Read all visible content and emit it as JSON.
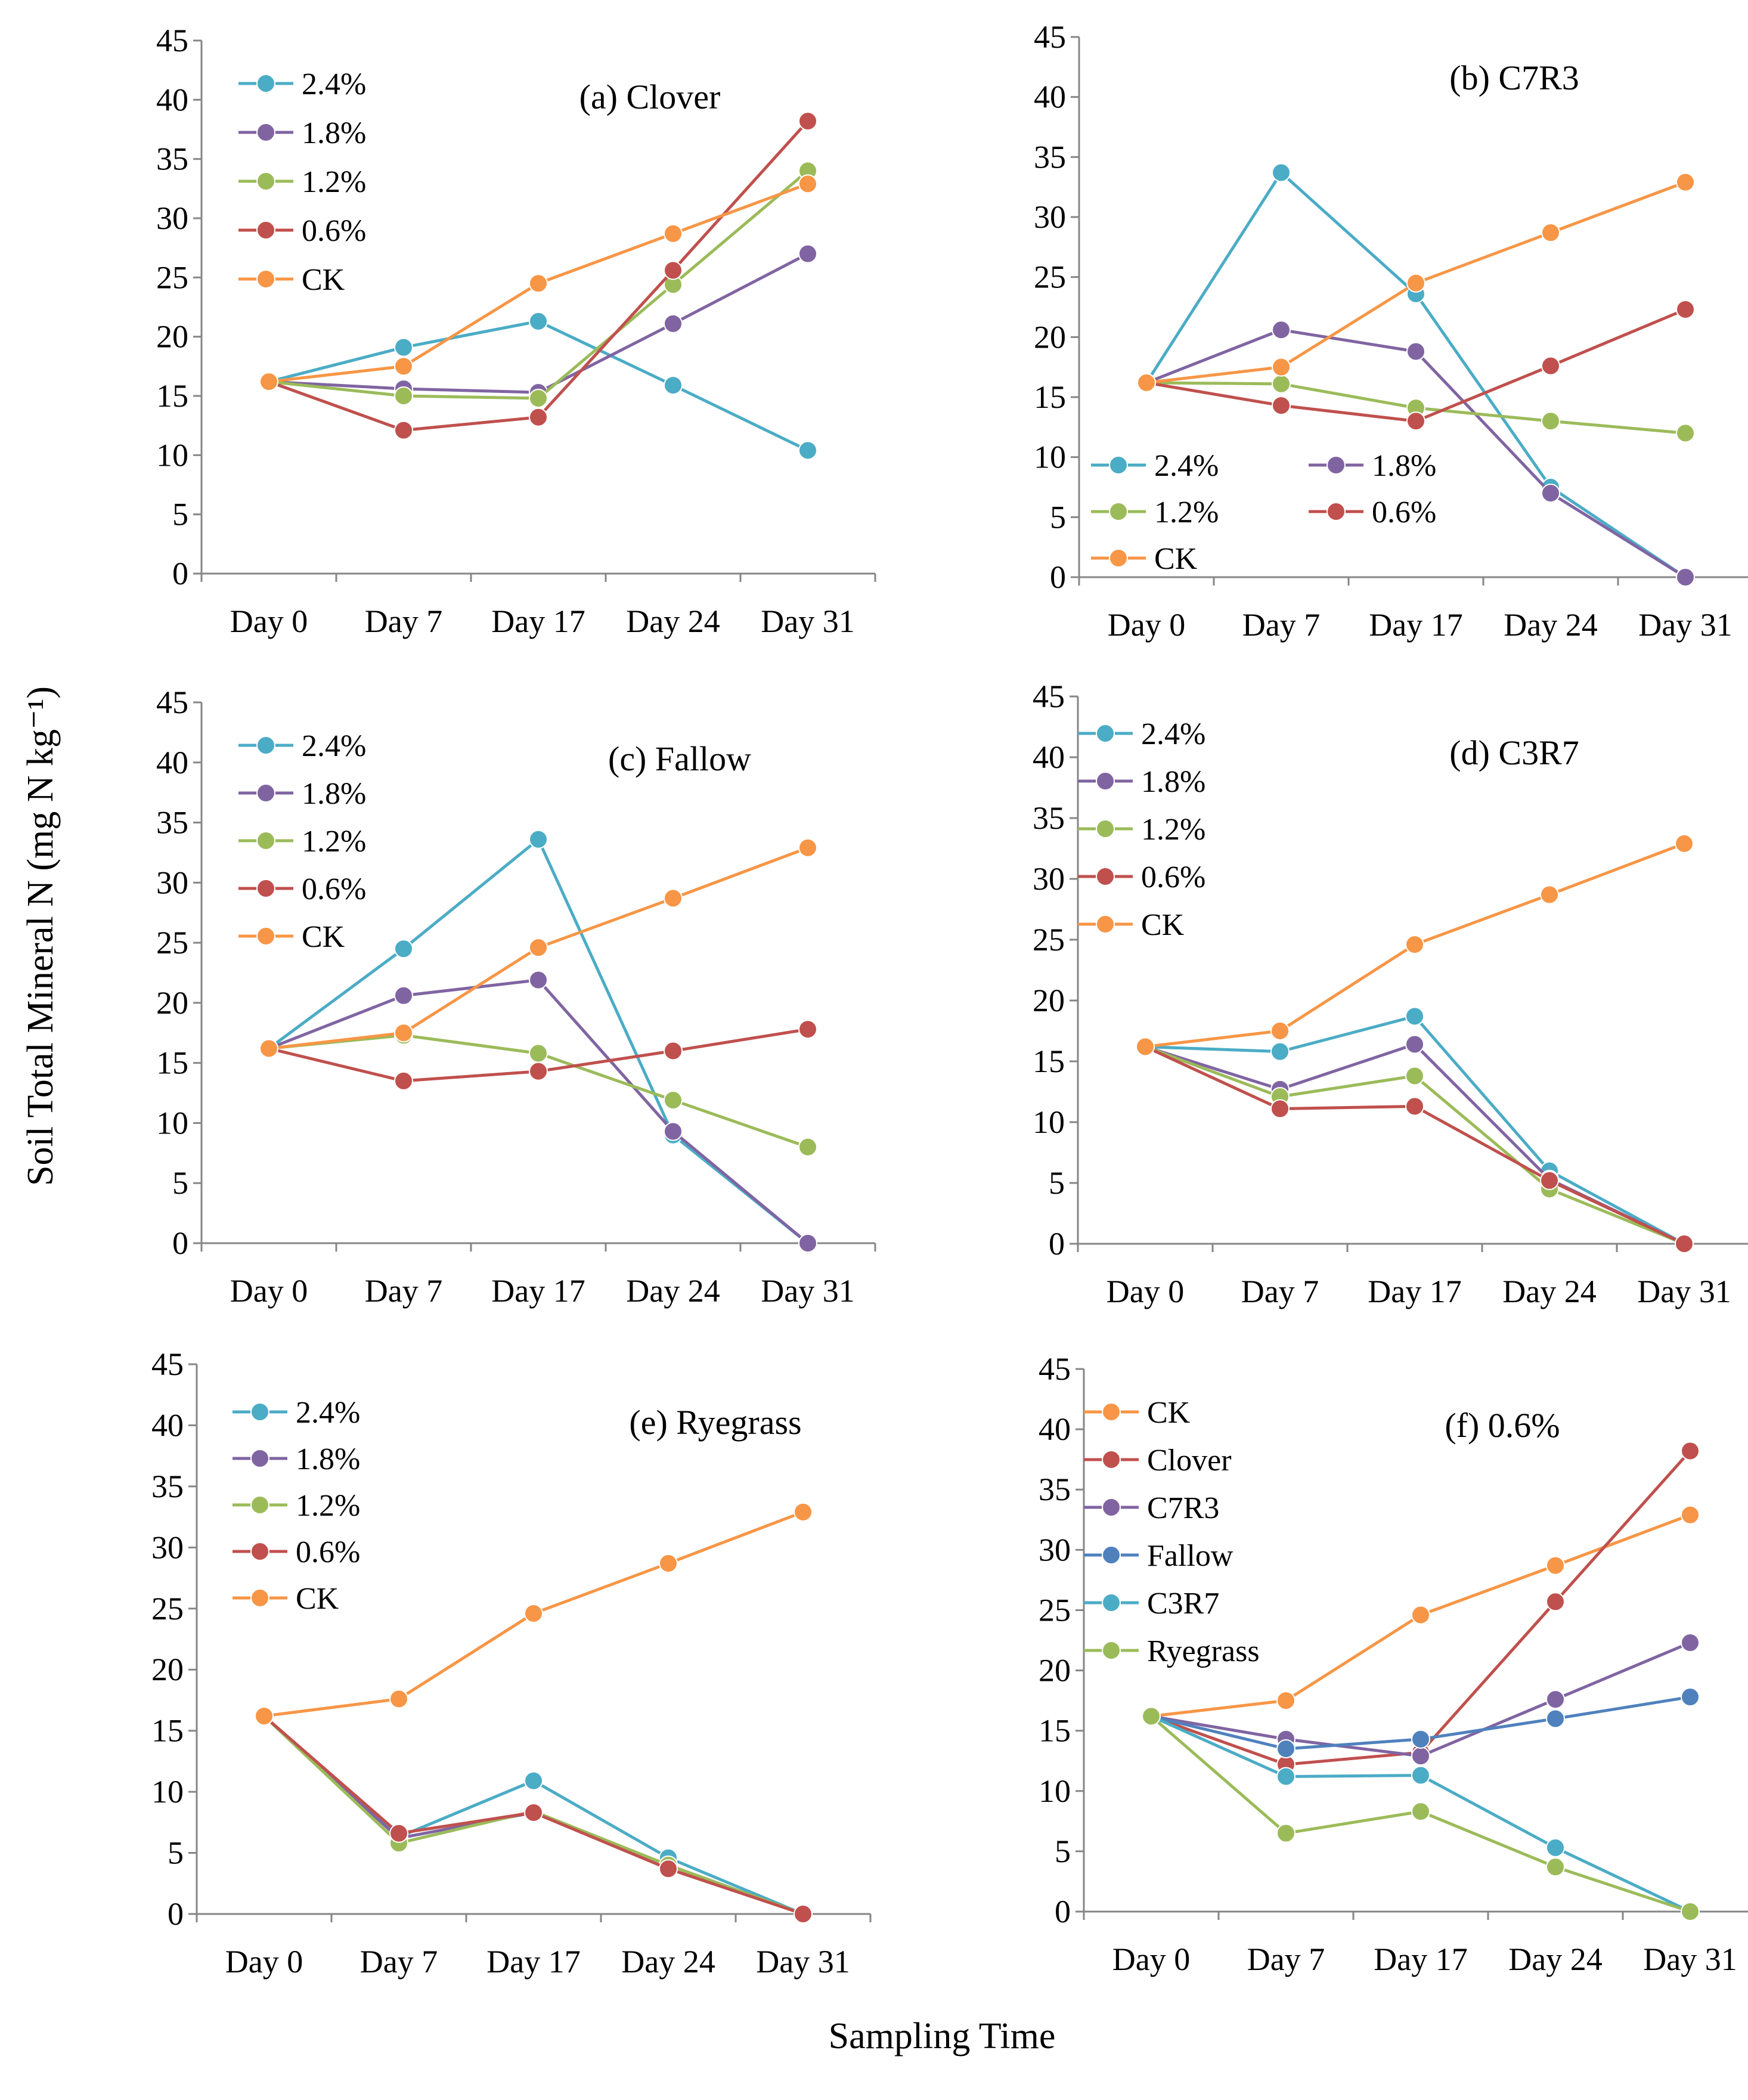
{
  "figure": {
    "y_axis_title": "Soil Total Mineral N (mg N kg⁻¹)",
    "x_axis_title": "Sampling Time"
  },
  "chart_data": [
    {
      "type": "line",
      "title": "(a) Clover",
      "categories": [
        "Day 0",
        "Day 7",
        "Day 17",
        "Day 24",
        "Day 31"
      ],
      "ylim": [
        0,
        45
      ],
      "yticks": [
        0,
        5,
        10,
        15,
        20,
        25,
        30,
        35,
        40,
        45
      ],
      "legend_position": "top-left",
      "legend_columns": 1,
      "series": [
        {
          "name": "2.4%",
          "color": "#4bacc6",
          "values": [
            16.2,
            19.1,
            21.3,
            15.9,
            10.4
          ]
        },
        {
          "name": "1.8%",
          "color": "#8064a2",
          "values": [
            16.2,
            15.6,
            15.3,
            21.1,
            27.0
          ]
        },
        {
          "name": "1.2%",
          "color": "#9bbb59",
          "values": [
            16.2,
            15.0,
            14.8,
            24.4,
            34.0
          ]
        },
        {
          "name": "0.6%",
          "color": "#c0504d",
          "values": [
            16.2,
            12.1,
            13.2,
            25.6,
            38.2
          ]
        },
        {
          "name": "CK",
          "color": "#f79646",
          "values": [
            16.2,
            17.5,
            24.5,
            28.7,
            32.9
          ]
        }
      ]
    },
    {
      "type": "line",
      "title": "(b) C7R3",
      "categories": [
        "Day 0",
        "Day 7",
        "Day 17",
        "Day 24",
        "Day 31"
      ],
      "ylim": [
        0,
        45
      ],
      "yticks": [
        0,
        5,
        10,
        15,
        20,
        25,
        30,
        35,
        40,
        45
      ],
      "legend_position": "bottom-left",
      "legend_columns": 2,
      "series": [
        {
          "name": "2.4%",
          "color": "#4bacc6",
          "values": [
            16.2,
            33.7,
            23.6,
            7.5,
            0
          ]
        },
        {
          "name": "1.8%",
          "color": "#8064a2",
          "values": [
            16.2,
            20.6,
            18.8,
            7.0,
            0
          ]
        },
        {
          "name": "1.2%",
          "color": "#9bbb59",
          "values": [
            16.2,
            16.1,
            14.1,
            13.0,
            12.0
          ]
        },
        {
          "name": "0.6%",
          "color": "#c0504d",
          "values": [
            16.2,
            14.3,
            13.0,
            17.6,
            22.3
          ]
        },
        {
          "name": "CK",
          "color": "#f79646",
          "values": [
            16.2,
            17.5,
            24.5,
            28.7,
            32.9
          ]
        }
      ]
    },
    {
      "type": "line",
      "title": "(c) Fallow",
      "categories": [
        "Day 0",
        "Day 7",
        "Day 17",
        "Day 24",
        "Day 31"
      ],
      "ylim": [
        0,
        45
      ],
      "yticks": [
        0,
        5,
        10,
        15,
        20,
        25,
        30,
        35,
        40,
        45
      ],
      "legend_position": "top-left",
      "legend_columns": 1,
      "series": [
        {
          "name": "2.4%",
          "color": "#4bacc6",
          "values": [
            16.2,
            24.5,
            33.6,
            9.0,
            0
          ]
        },
        {
          "name": "1.8%",
          "color": "#8064a2",
          "values": [
            16.2,
            20.6,
            21.9,
            9.3,
            0
          ]
        },
        {
          "name": "1.2%",
          "color": "#9bbb59",
          "values": [
            16.2,
            17.3,
            15.8,
            11.9,
            8.0
          ]
        },
        {
          "name": "0.6%",
          "color": "#c0504d",
          "values": [
            16.2,
            13.5,
            14.3,
            16.0,
            17.8
          ]
        },
        {
          "name": "CK",
          "color": "#f79646",
          "values": [
            16.2,
            17.5,
            24.6,
            28.7,
            32.9
          ]
        }
      ]
    },
    {
      "type": "line",
      "title": "(d) C3R7",
      "categories": [
        "Day 0",
        "Day 7",
        "Day 17",
        "Day 24",
        "Day 31"
      ],
      "ylim": [
        0,
        45
      ],
      "yticks": [
        0,
        5,
        10,
        15,
        20,
        25,
        30,
        35,
        40,
        45
      ],
      "legend_position": "top-left",
      "legend_columns": 1,
      "series": [
        {
          "name": "2.4%",
          "color": "#4bacc6",
          "values": [
            16.2,
            15.8,
            18.7,
            6.0,
            0
          ]
        },
        {
          "name": "1.8%",
          "color": "#8064a2",
          "values": [
            16.2,
            12.7,
            16.4,
            5.3,
            0
          ]
        },
        {
          "name": "1.2%",
          "color": "#9bbb59",
          "values": [
            16.2,
            12.1,
            13.8,
            4.5,
            0
          ]
        },
        {
          "name": "0.6%",
          "color": "#c0504d",
          "values": [
            16.2,
            11.1,
            11.3,
            5.2,
            0
          ]
        },
        {
          "name": "CK",
          "color": "#f79646",
          "values": [
            16.2,
            17.5,
            24.6,
            28.7,
            32.9
          ]
        }
      ]
    },
    {
      "type": "line",
      "title": "(e) Ryegrass",
      "categories": [
        "Day 0",
        "Day 7",
        "Day 17",
        "Day 24",
        "Day 31"
      ],
      "ylim": [
        0,
        45
      ],
      "yticks": [
        0,
        5,
        10,
        15,
        20,
        25,
        30,
        35,
        40,
        45
      ],
      "legend_position": "top-left",
      "legend_columns": 1,
      "series": [
        {
          "name": "2.4%",
          "color": "#4bacc6",
          "values": [
            16.2,
            6.3,
            10.9,
            4.6,
            0
          ]
        },
        {
          "name": "1.8%",
          "color": "#8064a2",
          "values": [
            16.2,
            6.2,
            8.3,
            4.0,
            0
          ]
        },
        {
          "name": "1.2%",
          "color": "#9bbb59",
          "values": [
            16.2,
            5.8,
            8.4,
            4.0,
            0
          ]
        },
        {
          "name": "0.6%",
          "color": "#c0504d",
          "values": [
            16.2,
            6.6,
            8.3,
            3.7,
            0
          ]
        },
        {
          "name": "CK",
          "color": "#f79646",
          "values": [
            16.2,
            17.6,
            24.6,
            28.7,
            32.9
          ]
        }
      ]
    },
    {
      "type": "line",
      "title": "(f) 0.6%",
      "categories": [
        "Day 0",
        "Day 7",
        "Day 17",
        "Day 24",
        "Day 31"
      ],
      "ylim": [
        0,
        45
      ],
      "yticks": [
        0,
        5,
        10,
        15,
        20,
        25,
        30,
        35,
        40,
        45
      ],
      "legend_position": "top-left",
      "legend_columns": 1,
      "series": [
        {
          "name": "CK",
          "color": "#f79646",
          "values": [
            16.2,
            17.5,
            24.6,
            28.7,
            32.9
          ]
        },
        {
          "name": "Clover",
          "color": "#c0504d",
          "values": [
            16.2,
            12.2,
            13.2,
            25.7,
            38.2
          ]
        },
        {
          "name": "C7R3",
          "color": "#8064a2",
          "values": [
            16.2,
            14.3,
            12.9,
            17.6,
            22.3
          ]
        },
        {
          "name": "Fallow",
          "color": "#4f81bd",
          "values": [
            16.2,
            13.5,
            14.3,
            16.0,
            17.8
          ]
        },
        {
          "name": "C3R7",
          "color": "#4bacc6",
          "values": [
            16.2,
            11.2,
            11.3,
            5.3,
            0
          ]
        },
        {
          "name": "Ryegrass",
          "color": "#9bbb59",
          "values": [
            16.2,
            6.5,
            8.3,
            3.7,
            0
          ]
        }
      ]
    }
  ]
}
